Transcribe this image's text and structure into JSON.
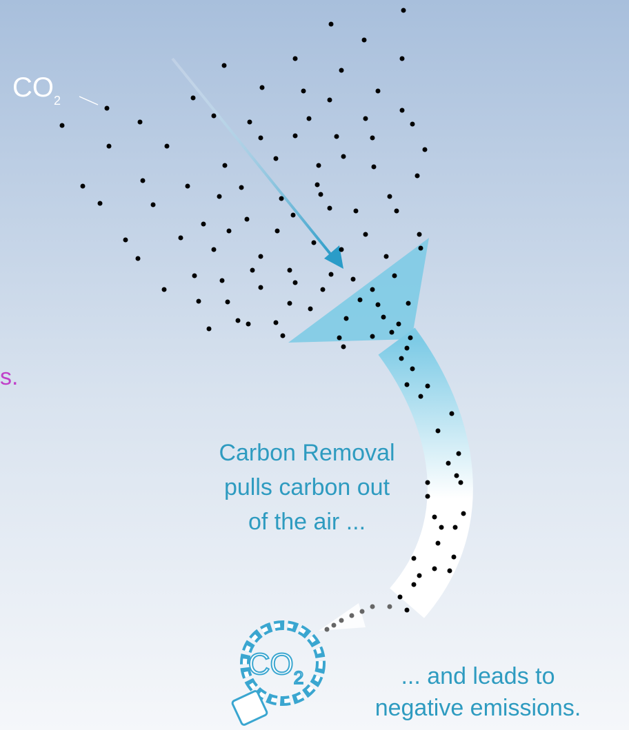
{
  "co2_label": {
    "main": "CO",
    "subscript": "2"
  },
  "fragment": "s.",
  "caption_removal": [
    "Carbon Removal",
    "pulls carbon out",
    "of the air ..."
  ],
  "caption_negative": [
    "... and leads to",
    "negative emissions."
  ],
  "icon": {
    "main": "CO",
    "subscript": "2"
  }
}
